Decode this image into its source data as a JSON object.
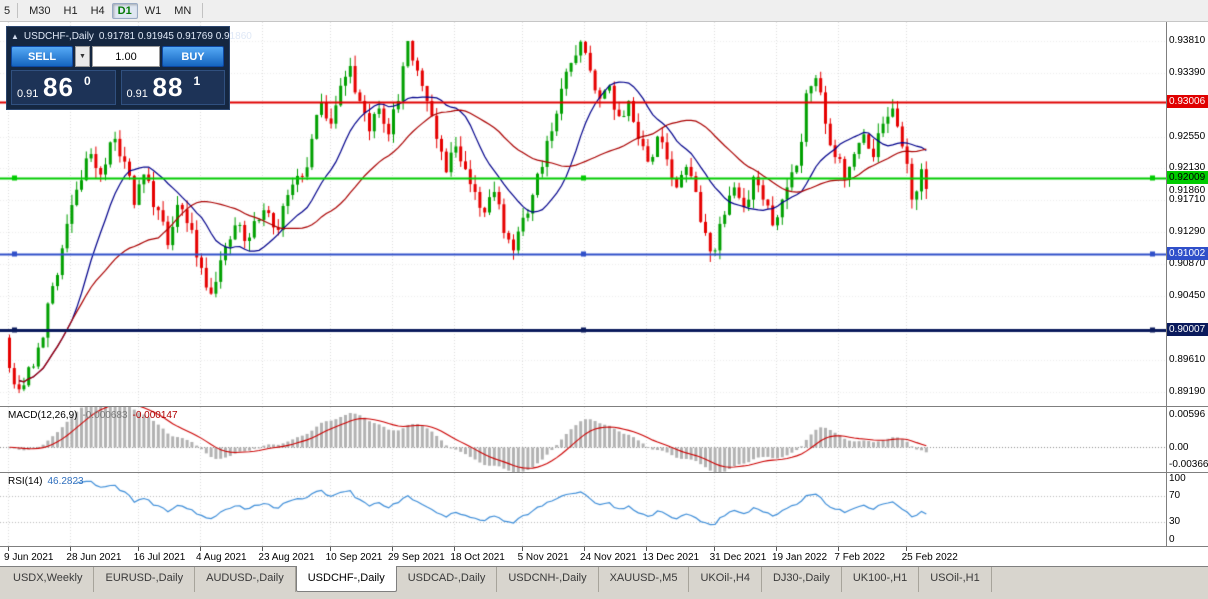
{
  "toolbar": {
    "partial_left_label": "5",
    "timeframes": [
      "M30",
      "H1",
      "H4",
      "D1",
      "W1",
      "MN"
    ],
    "active_timeframe": "D1"
  },
  "trade_panel": {
    "collapse_icon": "▲",
    "dropdown_icon": "▼",
    "symbol": "USDCHF-,Daily",
    "ohlc": "0.91781 0.91945 0.91769 0.91860",
    "sell_label": "SELL",
    "buy_label": "BUY",
    "volume": "1.00",
    "sell_price": {
      "prefix": "0.91",
      "big": "86",
      "sup": "0"
    },
    "buy_price": {
      "prefix": "0.91",
      "big": "88",
      "sup": "1"
    }
  },
  "price_axis": {
    "current_price_label": "0.91860"
  },
  "levels": [
    {
      "label": "0.93006",
      "price": 0.93006,
      "color": "#e00000",
      "text_color": "#ffffff",
      "line_width": 2,
      "handles": false
    },
    {
      "label": "0.92009",
      "price": 0.92009,
      "color": "#00cc00",
      "text_color": "#000000",
      "line_width": 2,
      "handles": true
    },
    {
      "label": "0.91002",
      "price": 0.91002,
      "color": "#2f4fc9",
      "text_color": "#ffffff",
      "line_width": 2,
      "handles": true
    },
    {
      "label": "0.90007",
      "price": 0.90007,
      "color": "#0a1a5c",
      "text_color": "#ffffff",
      "line_width": 3,
      "handles": true
    }
  ],
  "chart_data": {
    "type": "candlestick",
    "title": "USDCHF-,Daily",
    "ohlc_display": {
      "open": "0.91781",
      "high": "0.91945",
      "low": "0.91769",
      "close": "0.91860"
    },
    "bars": 192,
    "price_range": [
      0.89,
      0.9406
    ],
    "y_ticks": [
      0.9381,
      0.9339,
      0.9255,
      0.9213,
      0.9171,
      0.9129,
      0.9087,
      0.9045,
      0.8961,
      0.8919
    ],
    "x_ticks": [
      {
        "bar": 0,
        "label": "9 Jun 2021"
      },
      {
        "bar": 13,
        "label": "28 Jun 2021"
      },
      {
        "bar": 27,
        "label": "16 Jul 2021"
      },
      {
        "bar": 40,
        "label": "4 Aug 2021"
      },
      {
        "bar": 53,
        "label": "23 Aug 2021"
      },
      {
        "bar": 67,
        "label": "10 Sep 2021"
      },
      {
        "bar": 80,
        "label": "29 Sep 2021"
      },
      {
        "bar": 93,
        "label": "18 Oct 2021"
      },
      {
        "bar": 107,
        "label": "5 Nov 2021"
      },
      {
        "bar": 120,
        "label": "24 Nov 2021"
      },
      {
        "bar": 133,
        "label": "13 Dec 2021"
      },
      {
        "bar": 147,
        "label": "31 Dec 2021"
      },
      {
        "bar": 160,
        "label": "19 Jan 2022"
      },
      {
        "bar": 173,
        "label": "7 Feb 2022"
      },
      {
        "bar": 187,
        "label": "25 Feb 2022"
      }
    ],
    "close_anchors": [
      [
        0,
        0.895
      ],
      [
        2,
        0.8922
      ],
      [
        5,
        0.8952
      ],
      [
        7,
        0.899
      ],
      [
        9,
        0.9058
      ],
      [
        12,
        0.914
      ],
      [
        14,
        0.9185
      ],
      [
        17,
        0.9232
      ],
      [
        19,
        0.9205
      ],
      [
        22,
        0.9252
      ],
      [
        24,
        0.9222
      ],
      [
        26,
        0.9165
      ],
      [
        28,
        0.9205
      ],
      [
        31,
        0.9158
      ],
      [
        33,
        0.9112
      ],
      [
        35,
        0.9165
      ],
      [
        38,
        0.9132
      ],
      [
        40,
        0.9082
      ],
      [
        42,
        0.9048
      ],
      [
        44,
        0.9092
      ],
      [
        47,
        0.9138
      ],
      [
        50,
        0.9122
      ],
      [
        53,
        0.9158
      ],
      [
        56,
        0.9132
      ],
      [
        58,
        0.9178
      ],
      [
        61,
        0.9202
      ],
      [
        63,
        0.9252
      ],
      [
        65,
        0.93
      ],
      [
        67,
        0.9272
      ],
      [
        69,
        0.9322
      ],
      [
        71,
        0.9348
      ],
      [
        73,
        0.9302
      ],
      [
        75,
        0.9262
      ],
      [
        77,
        0.9292
      ],
      [
        79,
        0.9258
      ],
      [
        81,
        0.9302
      ],
      [
        83,
        0.9381
      ],
      [
        85,
        0.9342
      ],
      [
        87,
        0.9302
      ],
      [
        89,
        0.9252
      ],
      [
        91,
        0.9208
      ],
      [
        93,
        0.9242
      ],
      [
        95,
        0.9212
      ],
      [
        97,
        0.9182
      ],
      [
        99,
        0.9155
      ],
      [
        101,
        0.9182
      ],
      [
        103,
        0.9128
      ],
      [
        105,
        0.9105
      ],
      [
        107,
        0.9148
      ],
      [
        109,
        0.9178
      ],
      [
        111,
        0.9215
      ],
      [
        113,
        0.9262
      ],
      [
        115,
        0.9318
      ],
      [
        117,
        0.9352
      ],
      [
        119,
        0.938
      ],
      [
        121,
        0.9342
      ],
      [
        123,
        0.9305
      ],
      [
        125,
        0.9322
      ],
      [
        127,
        0.9282
      ],
      [
        129,
        0.9302
      ],
      [
        131,
        0.9252
      ],
      [
        133,
        0.9222
      ],
      [
        135,
        0.9255
      ],
      [
        137,
        0.9225
      ],
      [
        139,
        0.9188
      ],
      [
        141,
        0.9215
      ],
      [
        143,
        0.9182
      ],
      [
        145,
        0.9128
      ],
      [
        147,
        0.9105
      ],
      [
        149,
        0.9152
      ],
      [
        151,
        0.9188
      ],
      [
        153,
        0.9162
      ],
      [
        155,
        0.9202
      ],
      [
        157,
        0.9172
      ],
      [
        159,
        0.9138
      ],
      [
        161,
        0.9172
      ],
      [
        163,
        0.9208
      ],
      [
        165,
        0.9248
      ],
      [
        166,
        0.9312
      ],
      [
        168,
        0.9332
      ],
      [
        170,
        0.9272
      ],
      [
        172,
        0.9228
      ],
      [
        174,
        0.9198
      ],
      [
        176,
        0.9232
      ],
      [
        178,
        0.9258
      ],
      [
        180,
        0.9228
      ],
      [
        182,
        0.9272
      ],
      [
        184,
        0.9292
      ],
      [
        186,
        0.9242
      ],
      [
        188,
        0.9172
      ],
      [
        190,
        0.9212
      ],
      [
        191,
        0.9186
      ]
    ],
    "seed": 1234567,
    "noise": {
      "close": 0.0026,
      "wick": 0.0014
    },
    "clamp": {
      "high": 0.9382,
      "low": 0.8912
    },
    "first_open": 0.899,
    "forced_low": {
      "bar": 2,
      "value": 0.8917
    },
    "last_close": 0.9186,
    "colors": {
      "bull": "#00a000",
      "bear": "#e60000",
      "grid": "#dcdcdc",
      "grid_h": "#ececec",
      "background": "#ffffff",
      "ma_fast": "#00008b",
      "ma_slow": "#aa0000"
    },
    "moving_averages": [
      {
        "period": 14,
        "color_key": "ma_fast"
      },
      {
        "period": 32,
        "color_key": "ma_slow"
      }
    ]
  },
  "macd": {
    "label": "MACD(12,26,9)",
    "value_main": "-0.000683",
    "value_signal": "-0.000147",
    "params": {
      "fast": 12,
      "slow": 26,
      "signal": 9
    },
    "axis_labels": {
      "top": "0.00596",
      "zero": "0.00",
      "bottom": "-0.00366"
    },
    "range": [
      -0.00366,
      0.00596
    ],
    "colors": {
      "histogram": "#b2b2b2",
      "signal": "#cc0000",
      "zero_line": "#8a8a8a"
    }
  },
  "rsi": {
    "label": "RSI(14)",
    "value": "46.2823",
    "period": 14,
    "axis_labels": [
      "100",
      "70",
      "30",
      "0"
    ],
    "axis_values": [
      100,
      70,
      30,
      0
    ],
    "guide_levels": [
      70,
      30
    ],
    "colors": {
      "line": "#3e8ed9",
      "guide": "#b8b8b8"
    }
  },
  "tabs": {
    "items": [
      "USDX,Weekly",
      "EURUSD-,Daily",
      "AUDUSD-,Daily",
      "USDCHF-,Daily",
      "USDCAD-,Daily",
      "USDCNH-,Daily",
      "XAUUSD-,M5",
      "UKOil-,H4",
      "DJ30-,Daily",
      "UK100-,H1",
      "USOil-,H1"
    ],
    "active_index": 3
  }
}
